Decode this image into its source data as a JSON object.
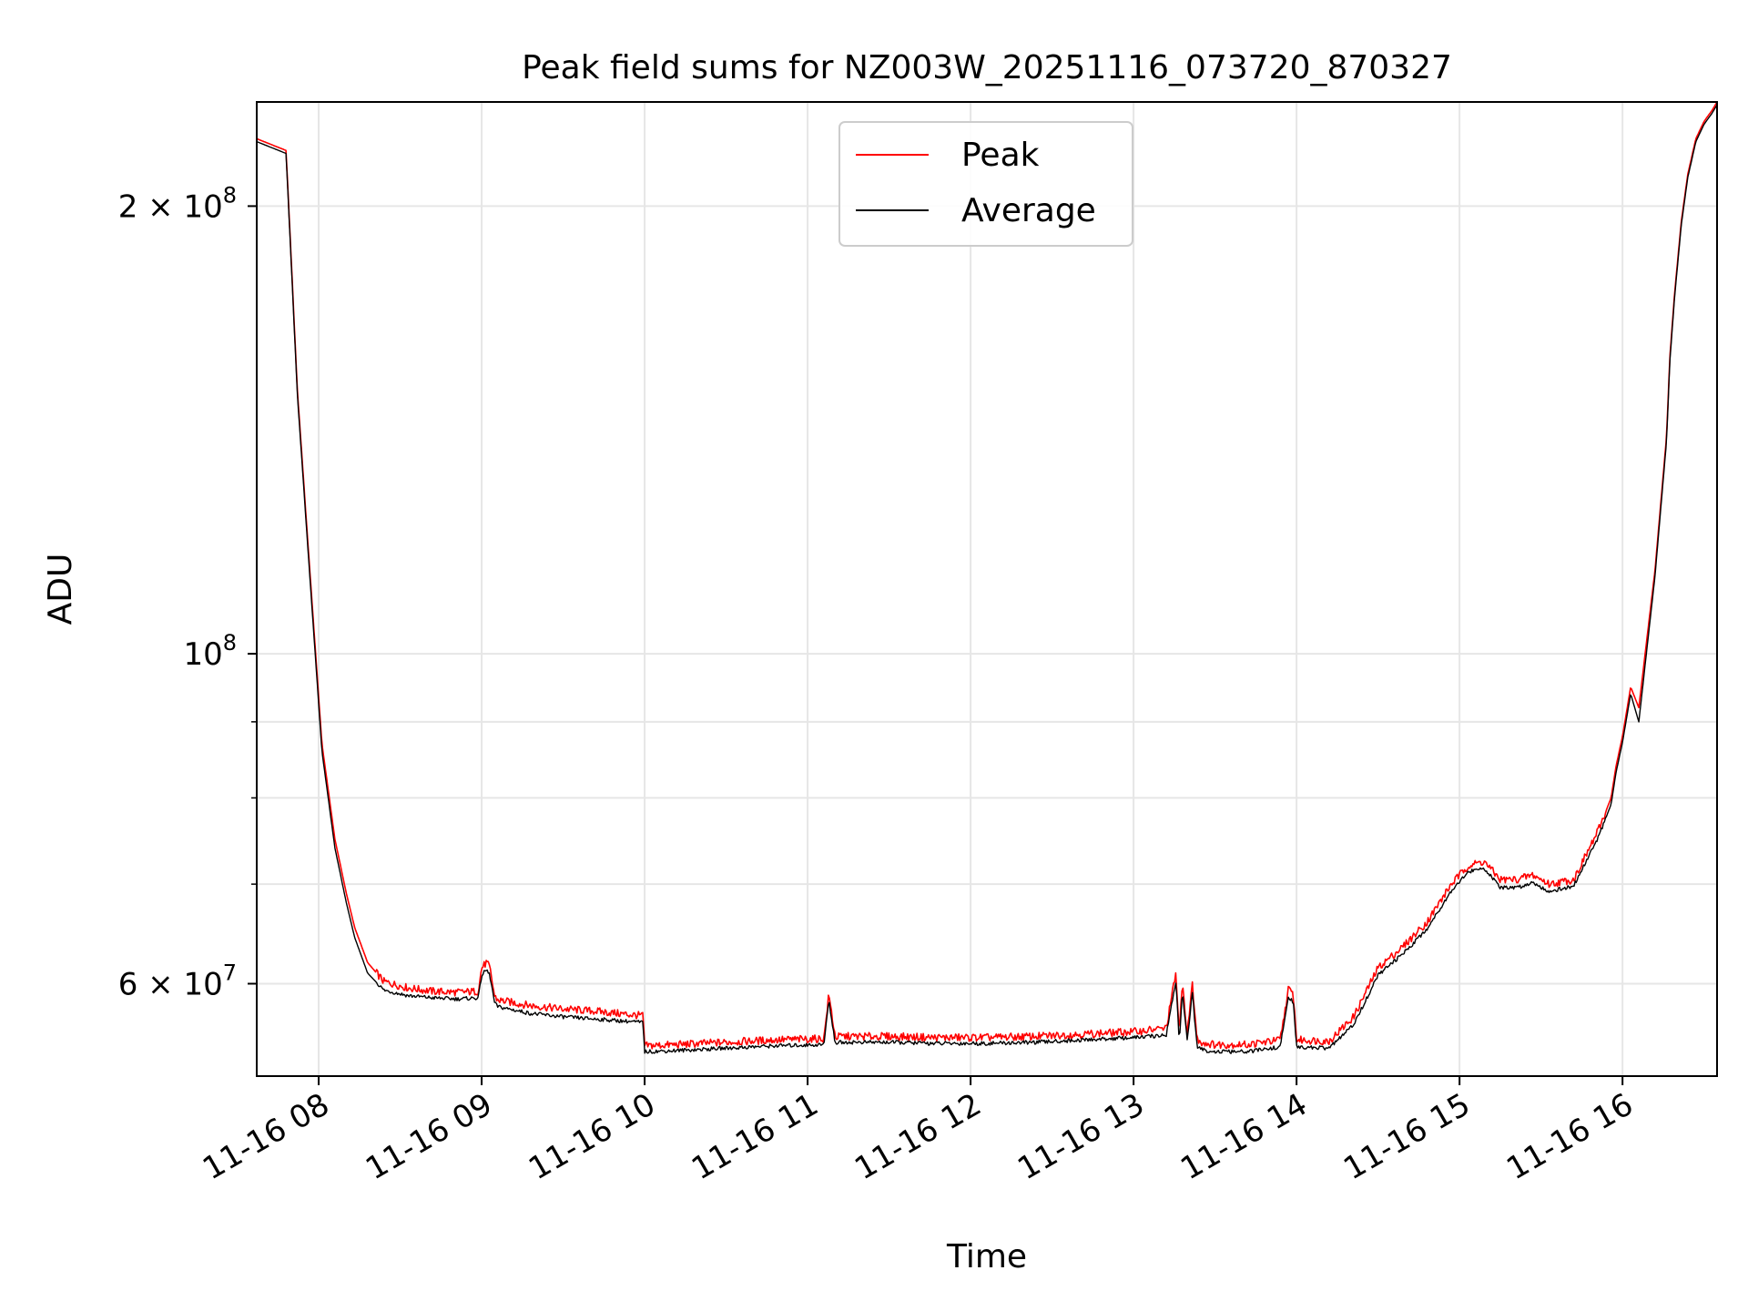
{
  "chart_data": {
    "type": "line",
    "title": "Peak field sums for NZ003W_20251116_073720_870327",
    "xlabel": "Time",
    "ylabel": "ADU",
    "yscale": "log",
    "ylim": [
      52000000,
      235000000
    ],
    "xlim_hours": [
      7.62,
      16.58
    ],
    "grid": true,
    "legend_position": "upper center",
    "x_ticks": [
      {
        "value": 8,
        "label": "11-16 08"
      },
      {
        "value": 9,
        "label": "11-16 09"
      },
      {
        "value": 10,
        "label": "11-16 10"
      },
      {
        "value": 11,
        "label": "11-16 11"
      },
      {
        "value": 12,
        "label": "11-16 12"
      },
      {
        "value": 13,
        "label": "11-16 13"
      },
      {
        "value": 14,
        "label": "11-16 14"
      },
      {
        "value": 15,
        "label": "11-16 15"
      },
      {
        "value": 16,
        "label": "11-16 16"
      }
    ],
    "y_major_ticks": [
      {
        "value": 60000000,
        "mant": "6 × 10",
        "exp": "7"
      },
      {
        "value": 100000000,
        "mant": "10",
        "exp": "8"
      },
      {
        "value": 200000000,
        "mant": "2 × 10",
        "exp": "8"
      }
    ],
    "y_minor_ticks": [
      70000000,
      80000000,
      90000000
    ],
    "series": [
      {
        "name": "Peak",
        "color": "#ff0000",
        "x_hours": [
          7.62,
          7.8,
          7.87,
          7.95,
          8.02,
          8.1,
          8.17,
          8.22,
          8.3,
          8.4,
          8.55,
          8.7,
          8.85,
          8.98,
          9.0,
          9.03,
          9.05,
          9.08,
          9.1,
          9.3,
          9.5,
          9.7,
          9.9,
          9.99,
          10.0,
          10.2,
          10.5,
          10.8,
          11.1,
          11.13,
          11.17,
          11.2,
          11.5,
          11.8,
          12.1,
          12.4,
          12.7,
          13.0,
          13.2,
          13.26,
          13.28,
          13.3,
          13.33,
          13.36,
          13.39,
          13.42,
          13.45,
          13.5,
          13.7,
          13.9,
          13.95,
          13.98,
          14.0,
          14.2,
          14.35,
          14.5,
          14.65,
          14.8,
          14.95,
          15.05,
          15.15,
          15.25,
          15.35,
          15.45,
          15.55,
          15.7,
          15.85,
          15.93,
          15.96,
          16.0,
          16.05,
          16.1,
          16.2,
          16.27,
          16.29,
          16.32,
          16.36,
          16.4,
          16.45,
          16.5,
          16.55,
          16.58
        ],
        "values": [
          222000000,
          218000000,
          150000000,
          112000000,
          87000000,
          75000000,
          69000000,
          65500000,
          62000000,
          60200000,
          59600000,
          59300000,
          59200000,
          59300000,
          61500000,
          62000000,
          61500000,
          58800000,
          58500000,
          58000000,
          57700000,
          57500000,
          57200000,
          57100000,
          54500000,
          54600000,
          54800000,
          55000000,
          55100000,
          59000000,
          55200000,
          55300000,
          55300000,
          55200000,
          55200000,
          55300000,
          55500000,
          55700000,
          56000000,
          61000000,
          55500000,
          60000000,
          55500000,
          60000000,
          55000000,
          54800000,
          54700000,
          54600000,
          54600000,
          55000000,
          59500000,
          59000000,
          55000000,
          54900000,
          57000000,
          61500000,
          63500000,
          66000000,
          70000000,
          72000000,
          72500000,
          70500000,
          70500000,
          71000000,
          70000000,
          70500000,
          76000000,
          80000000,
          84000000,
          88000000,
          95000000,
          92000000,
          114000000,
          140000000,
          158000000,
          175000000,
          195000000,
          210000000,
          222000000,
          228000000,
          232000000,
          235000000
        ]
      },
      {
        "name": "Average",
        "color": "#000000",
        "x_hours": [
          7.62,
          7.8,
          7.87,
          7.95,
          8.02,
          8.1,
          8.17,
          8.22,
          8.3,
          8.4,
          8.55,
          8.7,
          8.85,
          8.98,
          9.0,
          9.03,
          9.05,
          9.08,
          9.1,
          9.3,
          9.5,
          9.7,
          9.9,
          9.99,
          10.0,
          10.2,
          10.5,
          10.8,
          11.1,
          11.13,
          11.17,
          11.2,
          11.5,
          11.8,
          12.1,
          12.4,
          12.7,
          13.0,
          13.2,
          13.26,
          13.28,
          13.3,
          13.33,
          13.36,
          13.39,
          13.42,
          13.45,
          13.5,
          13.7,
          13.9,
          13.95,
          13.98,
          14.0,
          14.2,
          14.35,
          14.5,
          14.65,
          14.8,
          14.95,
          15.05,
          15.15,
          15.25,
          15.35,
          15.45,
          15.55,
          15.7,
          15.85,
          15.93,
          15.96,
          16.0,
          16.05,
          16.1,
          16.2,
          16.27,
          16.29,
          16.32,
          16.36,
          16.4,
          16.45,
          16.5,
          16.55,
          16.58
        ],
        "values": [
          221000000,
          217000000,
          149000000,
          111000000,
          86000000,
          74000000,
          68000000,
          64500000,
          61000000,
          59400000,
          58900000,
          58700000,
          58600000,
          58700000,
          60800000,
          61300000,
          60800000,
          58200000,
          57900000,
          57300000,
          57000000,
          56800000,
          56600000,
          56500000,
          54000000,
          54100000,
          54300000,
          54500000,
          54600000,
          58500000,
          54700000,
          54800000,
          54800000,
          54700000,
          54700000,
          54800000,
          55000000,
          55200000,
          55400000,
          60300000,
          54800000,
          59300000,
          54800000,
          59300000,
          54300000,
          54200000,
          54100000,
          54000000,
          54000000,
          54400000,
          58800000,
          58300000,
          54400000,
          54300000,
          56300000,
          60800000,
          62800000,
          65300000,
          69300000,
          71300000,
          71800000,
          69600000,
          69600000,
          70200000,
          69200000,
          69800000,
          75200000,
          79200000,
          83200000,
          87200000,
          94000000,
          90000000,
          113000000,
          139000000,
          157000000,
          174000000,
          194000000,
          209000000,
          221000000,
          227000000,
          231000000,
          234000000
        ]
      }
    ]
  }
}
